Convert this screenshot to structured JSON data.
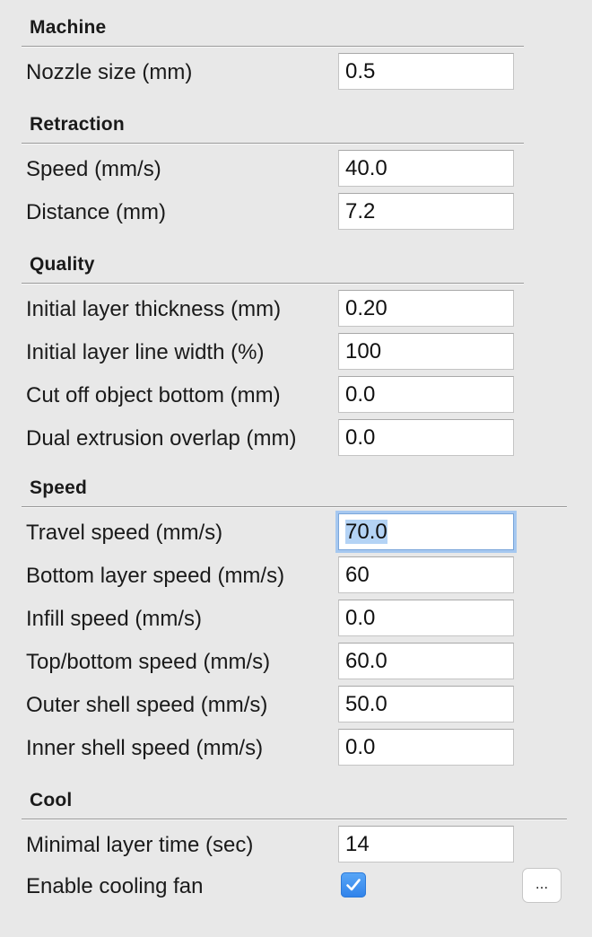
{
  "sections": {
    "machine": {
      "title": "Machine",
      "nozzle_size": {
        "label": "Nozzle size (mm)",
        "value": "0.5"
      }
    },
    "retraction": {
      "title": "Retraction",
      "speed": {
        "label": "Speed (mm/s)",
        "value": "40.0"
      },
      "distance": {
        "label": "Distance (mm)",
        "value": "7.2"
      }
    },
    "quality": {
      "title": "Quality",
      "initial_layer_thickness": {
        "label": "Initial layer thickness (mm)",
        "value": "0.20"
      },
      "initial_layer_line_width": {
        "label": "Initial layer line width (%)",
        "value": "100"
      },
      "cut_off_object_bottom": {
        "label": "Cut off object bottom (mm)",
        "value": "0.0"
      },
      "dual_extrusion_overlap": {
        "label": "Dual extrusion overlap (mm)",
        "value": "0.0"
      }
    },
    "speed": {
      "title": "Speed",
      "travel_speed": {
        "label": "Travel speed (mm/s)",
        "value": "70.0"
      },
      "bottom_layer_speed": {
        "label": "Bottom layer speed (mm/s)",
        "value": "60"
      },
      "infill_speed": {
        "label": "Infill speed (mm/s)",
        "value": "0.0"
      },
      "top_bottom_speed": {
        "label": "Top/bottom speed (mm/s)",
        "value": "60.0"
      },
      "outer_shell_speed": {
        "label": "Outer shell speed (mm/s)",
        "value": "50.0"
      },
      "inner_shell_speed": {
        "label": "Inner shell speed (mm/s)",
        "value": "0.0"
      }
    },
    "cool": {
      "title": "Cool",
      "minimal_layer_time": {
        "label": "Minimal layer time (sec)",
        "value": "14"
      },
      "enable_cooling_fan": {
        "label": "Enable cooling fan",
        "checked": true,
        "more_button_label": "..."
      }
    }
  },
  "colors": {
    "background": "#e8e8e8",
    "focus_ring": "#a6c8f0",
    "selection": "#b4d3f5",
    "checkbox_accent": "#2f82ea"
  },
  "icons": {
    "checkbox": "checkmark-icon"
  }
}
